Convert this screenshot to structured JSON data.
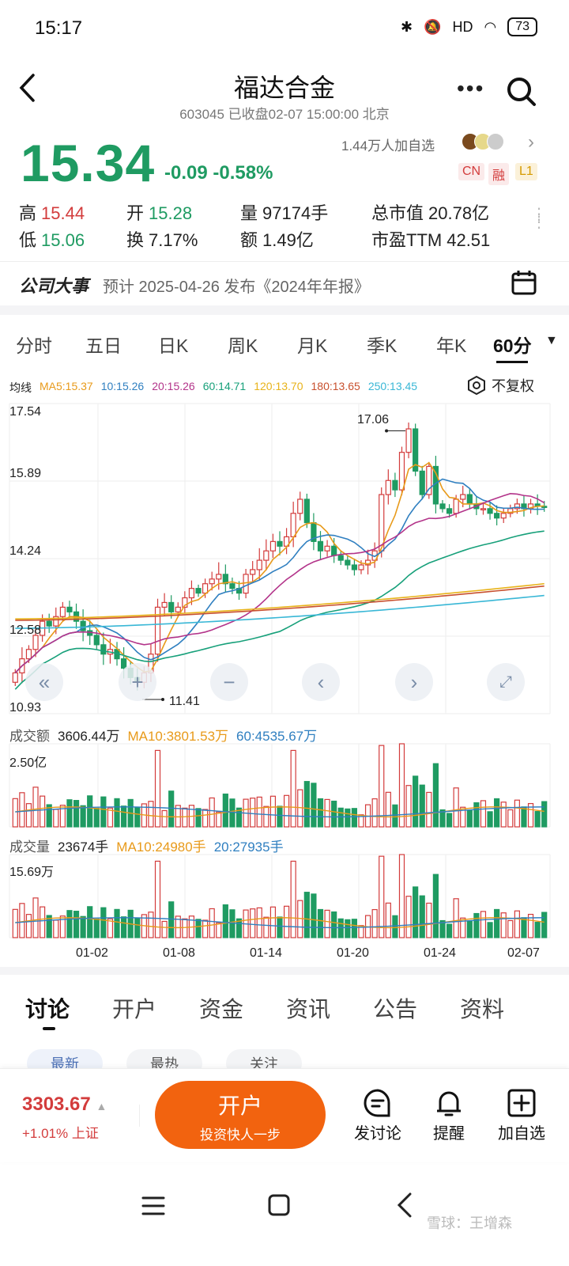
{
  "status_bar": {
    "time": "15:17",
    "battery": "73",
    "network": "HD"
  },
  "header": {
    "title": "福达合金",
    "subtitle": "603045 已收盘02-07 15:00:00 北京"
  },
  "quote": {
    "price": "15.34",
    "change": "-0.09",
    "change_pct": "-0.58%",
    "followers": "1.44万人加自选",
    "badges": {
      "cn": "CN",
      "rong": "融",
      "l1": "L1"
    },
    "stats": [
      {
        "label": "高",
        "value": "15.44",
        "color": "#d33c3c"
      },
      {
        "label": "开",
        "value": "15.28",
        "color": "#1f9b62"
      },
      {
        "label": "量",
        "value": "97174手",
        "color": "#222"
      },
      {
        "label": "总市值",
        "value": "20.78亿",
        "color": "#222"
      },
      {
        "label": "低",
        "value": "15.06",
        "color": "#1f9b62"
      },
      {
        "label": "换",
        "value": "7.17%",
        "color": "#222"
      },
      {
        "label": "额",
        "value": "1.49亿",
        "color": "#222"
      },
      {
        "label": "市盈TTM",
        "value": "42.51",
        "color": "#222"
      }
    ]
  },
  "event": {
    "title": "公司大事",
    "text": "预计 2025-04-26 发布《2024年年报》"
  },
  "period_tabs": [
    "分时",
    "五日",
    "日K",
    "周K",
    "月K",
    "季K",
    "年K",
    "60分"
  ],
  "ma_legend": {
    "label": "均线",
    "items": [
      "MA5:15.37",
      "10:15.26",
      "20:15.26",
      "60:14.71",
      "120:13.70",
      "180:13.65",
      "250:13.45"
    ],
    "colors": [
      "#e89a1a",
      "#2f7fc0",
      "#b3348a",
      "#17a07a",
      "#e8b31a",
      "#c8502e",
      "#39b7d6"
    ],
    "fuquan": "不复权"
  },
  "chart_data": {
    "type": "candlestick",
    "y_ticks": [
      "17.54",
      "15.89",
      "14.24",
      "12.58",
      "10.93"
    ],
    "ylim": [
      10.93,
      17.54
    ],
    "high_annotation": "17.06",
    "low_annotation": "11.41",
    "x_ticks": [
      "01-02",
      "01-08",
      "01-14",
      "01-20",
      "01-24",
      "02-07"
    ],
    "closes": [
      11.8,
      12.1,
      12.3,
      12.6,
      12.9,
      12.8,
      13.0,
      13.2,
      13.1,
      12.9,
      12.7,
      12.6,
      12.4,
      12.2,
      12.3,
      12.1,
      11.9,
      11.7,
      11.6,
      11.8,
      12.2,
      13.2,
      13.3,
      13.1,
      13.2,
      13.4,
      13.6,
      13.5,
      13.7,
      13.8,
      13.9,
      13.7,
      13.6,
      13.5,
      13.9,
      14.0,
      14.2,
      14.4,
      14.6,
      14.5,
      14.7,
      15.2,
      15.5,
      15.0,
      14.6,
      14.4,
      14.5,
      14.3,
      14.2,
      14.1,
      14.0,
      14.1,
      14.2,
      14.4,
      15.6,
      15.9,
      15.7,
      16.5,
      17.0,
      16.1,
      15.6,
      16.2,
      15.4,
      15.3,
      15.2,
      15.5,
      15.6,
      15.4,
      15.3,
      15.3,
      15.2,
      15.1,
      15.2,
      15.3,
      15.4,
      15.3,
      15.4,
      15.35,
      15.34
    ],
    "turnover": {
      "label": "成交额",
      "value": "3606.44万",
      "ma10": "MA10:3801.53万",
      "ma60": "60:4535.67万",
      "max_label": "2.50亿"
    },
    "volume": {
      "label": "成交量",
      "value": "23674手",
      "ma10": "MA10:24980手",
      "ma20": "20:27935手",
      "max_label": "15.69万"
    }
  },
  "bottom_tabs": [
    "讨论",
    "开户",
    "资金",
    "资讯",
    "公告",
    "资料"
  ],
  "sub_tabs": [
    "最新",
    "最热",
    "关注"
  ],
  "action_bar": {
    "index_value": "3303.67",
    "index_change": "+1.01% 上证",
    "open_main": "开户",
    "open_sub": "投资快人一步",
    "actions": [
      "发讨论",
      "提醒",
      "加自选"
    ]
  },
  "watermark": "雪球：王增森"
}
